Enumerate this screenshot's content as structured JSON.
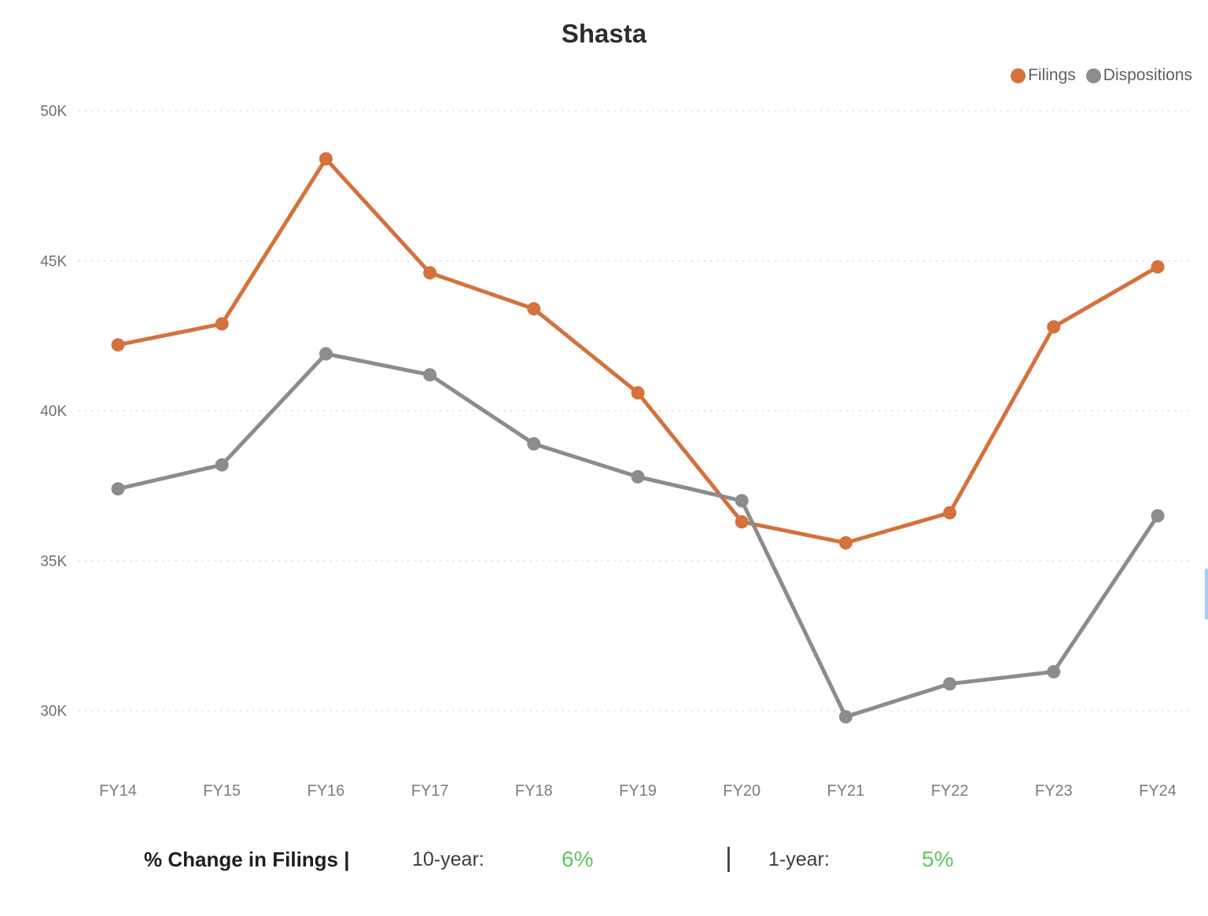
{
  "title": "Shasta",
  "chart_data": {
    "type": "line",
    "title": "Shasta",
    "categories": [
      "FY14",
      "FY15",
      "FY16",
      "FY17",
      "FY18",
      "FY19",
      "FY20",
      "FY21",
      "FY22",
      "FY23",
      "FY24"
    ],
    "series": [
      {
        "name": "Filings",
        "color": "#D4713D",
        "values": [
          42200,
          42900,
          48400,
          44600,
          43400,
          40600,
          36300,
          35600,
          36600,
          42800,
          44800
        ]
      },
      {
        "name": "Dispositions",
        "color": "#8C8C8C",
        "values": [
          37400,
          38200,
          41900,
          41200,
          38900,
          37800,
          37000,
          29800,
          30900,
          31300,
          36500
        ]
      }
    ],
    "y_ticks": [
      {
        "label": "50K",
        "value": 50000
      },
      {
        "label": "45K",
        "value": 45000
      },
      {
        "label": "40K",
        "value": 40000
      },
      {
        "label": "35K",
        "value": 35000
      },
      {
        "label": "30K",
        "value": 30000
      }
    ],
    "ylim": [
      27600,
      50200
    ],
    "xlabel": "",
    "ylabel": "",
    "grid": "horizontal-dotted",
    "legend_position": "top-right"
  },
  "legend": {
    "items": [
      {
        "label": "Filings",
        "color": "#D4713D"
      },
      {
        "label": "Dispositions",
        "color": "#8C8C8C"
      }
    ]
  },
  "footer": {
    "heading": "% Change in Filings |",
    "separator": "|",
    "stats": [
      {
        "label": "10-year:",
        "value": "6%"
      },
      {
        "label": "1-year:",
        "value": "5%"
      }
    ],
    "value_color": "#5CC85C"
  },
  "colors": {
    "grid": "#d5d5d5",
    "axis_text": "#7c7c7c",
    "scrollbar": "#A9CDF3"
  }
}
